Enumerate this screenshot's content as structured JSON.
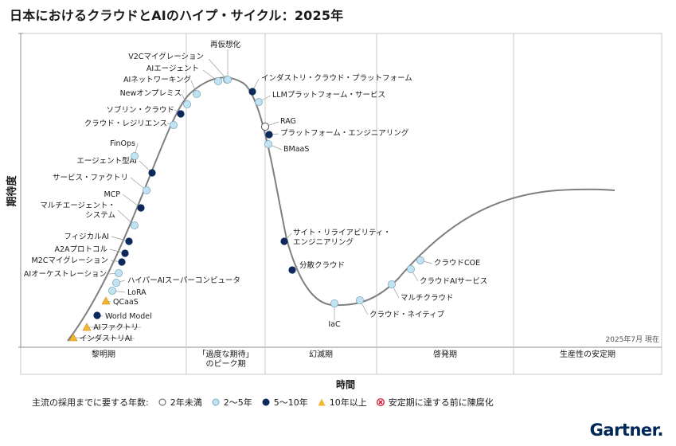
{
  "title": "日本におけるクラウドとAIのハイプ・サイクル：2025年",
  "chart_data": {
    "type": "hype_cycle",
    "ylabel": "期待度",
    "xlabel": "時間",
    "as_of": "2025年7月 現在",
    "phases": [
      {
        "name": "黎明期"
      },
      {
        "name": "「過度な期待」のピーク期"
      },
      {
        "name": "幻滅期"
      },
      {
        "name": "啓発期"
      },
      {
        "name": "生産性の安定期"
      }
    ],
    "legend_title": "主流の採用までに要する年数:",
    "legend": [
      {
        "key": "lt2",
        "label": "2年未満"
      },
      {
        "key": "y2to5",
        "label": "2～5年"
      },
      {
        "key": "y5to10",
        "label": "5～10年"
      },
      {
        "key": "gt10",
        "label": "10年以上"
      },
      {
        "key": "obsolete",
        "label": "安定期に達する前に陳腐化"
      }
    ],
    "colors": {
      "lt2": "#ffffff",
      "y2to5": "#bfe3f2",
      "y5to10": "#0b2a5b",
      "gt10": "#f2b632",
      "obsolete": "#d0021b",
      "curve": "#7f7f7f"
    },
    "items": [
      {
        "name": "インダストリAI",
        "cat": "gt10"
      },
      {
        "name": "AIファクトリ",
        "cat": "gt10"
      },
      {
        "name": "World Model",
        "cat": "y5to10"
      },
      {
        "name": "QCaaS",
        "cat": "gt10"
      },
      {
        "name": "LoRA",
        "cat": "y2to5"
      },
      {
        "name": "ハイパーAIスーパーコンピュータ",
        "cat": "y2to5"
      },
      {
        "name": "AIオーケストレーション",
        "cat": "y2to5"
      },
      {
        "name": "M2Cマイグレーション",
        "cat": "y5to10"
      },
      {
        "name": "A2Aプロトコル",
        "cat": "y5to10"
      },
      {
        "name": "フィジカルAI",
        "cat": "y5to10"
      },
      {
        "name": "マルチエージェント・\nシステム",
        "cat": "y2to5"
      },
      {
        "name": "MCP",
        "cat": "y5to10"
      },
      {
        "name": "サービス・ファクトリ",
        "cat": "y2to5"
      },
      {
        "name": "エージェント型AI",
        "cat": "y5to10"
      },
      {
        "name": "FinOps",
        "cat": "y2to5"
      },
      {
        "name": "クラウド・レジリエンス",
        "cat": "y2to5"
      },
      {
        "name": "ソブリン・クラウド",
        "cat": "y5to10"
      },
      {
        "name": "Newオンプレミス",
        "cat": "y2to5"
      },
      {
        "name": "AIネットワーキング",
        "cat": "y2to5"
      },
      {
        "name": "AIエージェント",
        "cat": "y2to5"
      },
      {
        "name": "V2Cマイグレーション",
        "cat": "y2to5"
      },
      {
        "name": "再仮想化",
        "cat": "y2to5"
      },
      {
        "name": "インダストリ・クラウド・プラットフォーム",
        "cat": "y5to10"
      },
      {
        "name": "LLMプラットフォーム・サービス",
        "cat": "y2to5"
      },
      {
        "name": "RAG",
        "cat": "lt2"
      },
      {
        "name": "プラットフォーム・エンジニアリング",
        "cat": "y5to10"
      },
      {
        "name": "BMaaS",
        "cat": "y2to5"
      },
      {
        "name": "サイト・リライアビリティ・\nエンジニアリング",
        "cat": "y5to10"
      },
      {
        "name": "分散クラウド",
        "cat": "y5to10"
      },
      {
        "name": "IaC",
        "cat": "y2to5"
      },
      {
        "name": "クラウド・ネイティブ",
        "cat": "y2to5"
      },
      {
        "name": "マルチクラウド",
        "cat": "y2to5"
      },
      {
        "name": "クラウドAIサービス",
        "cat": "y2to5"
      },
      {
        "name": "クラウドCOE",
        "cat": "y2to5"
      }
    ]
  },
  "brand": "Gartner"
}
